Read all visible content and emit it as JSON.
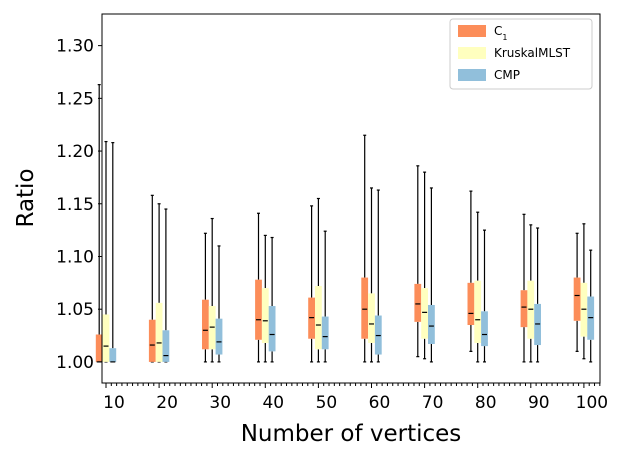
{
  "chart_data": {
    "type": "boxplot",
    "title": "",
    "xlabel": "Number of vertices",
    "ylabel": "Ratio",
    "ylim": [
      0.98,
      1.33
    ],
    "yticks": [
      1.0,
      1.05,
      1.1,
      1.15,
      1.2,
      1.25,
      1.3
    ],
    "ytick_labels": [
      "1.00",
      "1.05",
      "1.10",
      "1.15",
      "1.20",
      "1.25",
      "1.30"
    ],
    "categories": [
      "10",
      "20",
      "30",
      "40",
      "50",
      "60",
      "70",
      "80",
      "90",
      "100"
    ],
    "legend": {
      "position": "top-right",
      "entries": [
        {
          "label_main": "C",
          "label_sub": "1",
          "color": "#fc8d59"
        },
        {
          "label_main": "KruskalMLST",
          "label_sub": "",
          "color": "#ffffbf"
        },
        {
          "label_main": "CMP",
          "label_sub": "",
          "color": "#91bfdb"
        }
      ]
    },
    "series": [
      {
        "name": "C1",
        "color": "#fc8d59",
        "boxes": [
          {
            "min": 1.0,
            "q1": 1.0,
            "median": 1.0,
            "q3": 1.026,
            "max": 1.263
          },
          {
            "min": 1.0,
            "q1": 1.0,
            "median": 1.016,
            "q3": 1.04,
            "max": 1.158
          },
          {
            "min": 1.0,
            "q1": 1.012,
            "median": 1.03,
            "q3": 1.059,
            "max": 1.122
          },
          {
            "min": 1.0,
            "q1": 1.021,
            "median": 1.04,
            "q3": 1.078,
            "max": 1.141
          },
          {
            "min": 1.0,
            "q1": 1.022,
            "median": 1.042,
            "q3": 1.061,
            "max": 1.148
          },
          {
            "min": 1.0,
            "q1": 1.022,
            "median": 1.05,
            "q3": 1.08,
            "max": 1.215
          },
          {
            "min": 1.005,
            "q1": 1.038,
            "median": 1.055,
            "q3": 1.074,
            "max": 1.186
          },
          {
            "min": 1.01,
            "q1": 1.035,
            "median": 1.046,
            "q3": 1.075,
            "max": 1.162
          },
          {
            "min": 1.0,
            "q1": 1.033,
            "median": 1.052,
            "q3": 1.068,
            "max": 1.14
          },
          {
            "min": 1.01,
            "q1": 1.039,
            "median": 1.063,
            "q3": 1.08,
            "max": 1.122
          }
        ]
      },
      {
        "name": "KruskalMLST",
        "color": "#ffffbf",
        "boxes": [
          {
            "min": 1.0,
            "q1": 1.0,
            "median": 1.015,
            "q3": 1.045,
            "max": 1.209
          },
          {
            "min": 1.0,
            "q1": 1.0,
            "median": 1.018,
            "q3": 1.056,
            "max": 1.15
          },
          {
            "min": 1.0,
            "q1": 1.012,
            "median": 1.033,
            "q3": 1.053,
            "max": 1.136
          },
          {
            "min": 1.0,
            "q1": 1.018,
            "median": 1.039,
            "q3": 1.07,
            "max": 1.12
          },
          {
            "min": 1.0,
            "q1": 1.012,
            "median": 1.035,
            "q3": 1.072,
            "max": 1.155
          },
          {
            "min": 1.0,
            "q1": 1.018,
            "median": 1.036,
            "q3": 1.065,
            "max": 1.165
          },
          {
            "min": 1.003,
            "q1": 1.022,
            "median": 1.047,
            "q3": 1.07,
            "max": 1.18
          },
          {
            "min": 1.0,
            "q1": 1.018,
            "median": 1.04,
            "q3": 1.077,
            "max": 1.142
          },
          {
            "min": 1.0,
            "q1": 1.022,
            "median": 1.05,
            "q3": 1.077,
            "max": 1.13
          },
          {
            "min": 1.003,
            "q1": 1.024,
            "median": 1.05,
            "q3": 1.075,
            "max": 1.131
          }
        ]
      },
      {
        "name": "CMP",
        "color": "#91bfdb",
        "boxes": [
          {
            "min": 1.0,
            "q1": 1.0,
            "median": 1.0,
            "q3": 1.013,
            "max": 1.208
          },
          {
            "min": 1.0,
            "q1": 1.0,
            "median": 1.006,
            "q3": 1.03,
            "max": 1.145
          },
          {
            "min": 1.0,
            "q1": 1.007,
            "median": 1.019,
            "q3": 1.041,
            "max": 1.11
          },
          {
            "min": 1.0,
            "q1": 1.01,
            "median": 1.026,
            "q3": 1.053,
            "max": 1.118
          },
          {
            "min": 1.0,
            "q1": 1.012,
            "median": 1.024,
            "q3": 1.043,
            "max": 1.124
          },
          {
            "min": 1.0,
            "q1": 1.007,
            "median": 1.025,
            "q3": 1.044,
            "max": 1.163
          },
          {
            "min": 1.0,
            "q1": 1.017,
            "median": 1.034,
            "q3": 1.054,
            "max": 1.165
          },
          {
            "min": 1.0,
            "q1": 1.015,
            "median": 1.026,
            "q3": 1.048,
            "max": 1.125
          },
          {
            "min": 1.0,
            "q1": 1.016,
            "median": 1.036,
            "q3": 1.055,
            "max": 1.127
          },
          {
            "min": 1.0,
            "q1": 1.021,
            "median": 1.042,
            "q3": 1.062,
            "max": 1.106
          }
        ]
      }
    ]
  }
}
